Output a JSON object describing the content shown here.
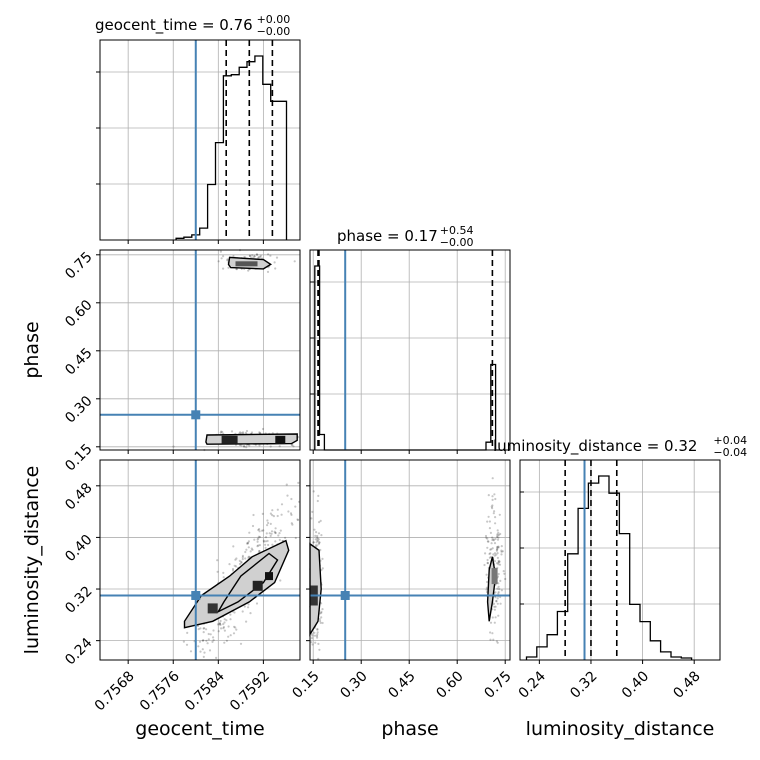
{
  "chart_data": {
    "type": "corner",
    "parameters": [
      "geocent_time",
      "phase",
      "luminosity_distance"
    ],
    "truths": {
      "geocent_time": 0.758,
      "phase": 0.25,
      "luminosity_distance": 0.31
    },
    "ranges": {
      "geocent_time": [
        0.7563,
        0.75985
      ],
      "phase": [
        0.14,
        0.765
      ],
      "luminosity_distance": [
        0.21,
        0.52
      ]
    },
    "ticks": {
      "geocent_time": [
        "0.7568",
        "0.7576",
        "0.7584",
        "0.7592"
      ],
      "phase": [
        "0.15",
        "0.30",
        "0.45",
        "0.60",
        "0.75"
      ],
      "luminosity_distance": [
        "0.24",
        "0.32",
        "0.40",
        "0.48"
      ]
    },
    "titles": [
      {
        "param": "geocent_time",
        "text": "geocent_time = 0.76",
        "sup": "+0.00",
        "sub": "−0.00"
      },
      {
        "param": "phase",
        "text": "phase = 0.17",
        "sup": "+0.54",
        "sub": "−0.00"
      },
      {
        "param": "luminosity_distance",
        "text": "luminosity_distance = 0.32",
        "sup": "+0.04",
        "sub": "−0.04"
      }
    ],
    "quantiles": {
      "geocent_time": [
        0.75854,
        0.75895,
        0.75936
      ],
      "phase": [
        0.165,
        0.168,
        0.71
      ],
      "luminosity_distance": [
        0.28,
        0.32,
        0.36
      ]
    },
    "histograms": {
      "geocent_time": {
        "edges": [
          0.75765,
          0.75779,
          0.75793,
          0.75807,
          0.75821,
          0.75835,
          0.75849,
          0.75863,
          0.75877,
          0.75891,
          0.75905,
          0.75919,
          0.75933,
          0.75947,
          0.75961
        ],
        "counts": [
          3,
          5,
          9,
          21,
          98,
          172,
          290,
          292,
          305,
          315,
          325,
          275,
          245,
          245
        ]
      },
      "phase": {
        "edges": [
          0.155,
          0.17,
          0.185,
          0.69,
          0.705,
          0.72,
          0.735
        ],
        "counts": [
          355,
          30,
          0,
          15,
          165,
          0
        ]
      },
      "luminosity_distance": {
        "edges": [
          0.22,
          0.236,
          0.252,
          0.268,
          0.284,
          0.3,
          0.316,
          0.332,
          0.348,
          0.364,
          0.38,
          0.396,
          0.412,
          0.428,
          0.444,
          0.46,
          0.476
        ],
        "counts": [
          3,
          13,
          25,
          48,
          105,
          150,
          175,
          182,
          165,
          125,
          55,
          38,
          19,
          8,
          3,
          2
        ]
      }
    },
    "contours": {
      "phase_vs_geocent_time": [
        {
          "x": [
            0.75858,
            0.7586,
            0.7592,
            0.75933,
            0.7592,
            0.75862
          ],
          "y": [
            0.72,
            0.742,
            0.735,
            0.72,
            0.706,
            0.71
          ]
        },
        {
          "x": [
            0.75818,
            0.7582,
            0.7598,
            0.7598,
            0.7597,
            0.7582
          ],
          "y": [
            0.165,
            0.187,
            0.19,
            0.17,
            0.16,
            0.158
          ]
        }
      ],
      "luminosity_distance_vs_geocent_time": [
        {
          "x": [
            0.7578,
            0.7583,
            0.75895,
            0.7594,
            0.75965,
            0.7596,
            0.759,
            0.7586,
            0.7581,
            0.7578
          ],
          "y": [
            0.26,
            0.27,
            0.3,
            0.33,
            0.38,
            0.395,
            0.37,
            0.34,
            0.31,
            0.27
          ]
        },
        {
          "x": [
            0.7584,
            0.75875,
            0.7592,
            0.75945,
            0.7593,
            0.7588,
            0.7585
          ],
          "y": [
            0.285,
            0.3,
            0.33,
            0.365,
            0.375,
            0.34,
            0.3
          ]
        }
      ],
      "luminosity_distance_vs_phase": [
        {
          "x": [
            0.14,
            0.165,
            0.175,
            0.168,
            0.14
          ],
          "y": [
            0.25,
            0.27,
            0.32,
            0.38,
            0.39
          ]
        },
        {
          "x": [
            0.7,
            0.71,
            0.72,
            0.71,
            0.7,
            0.695
          ],
          "y": [
            0.27,
            0.3,
            0.34,
            0.37,
            0.35,
            0.3
          ]
        }
      ]
    },
    "grid": true
  }
}
